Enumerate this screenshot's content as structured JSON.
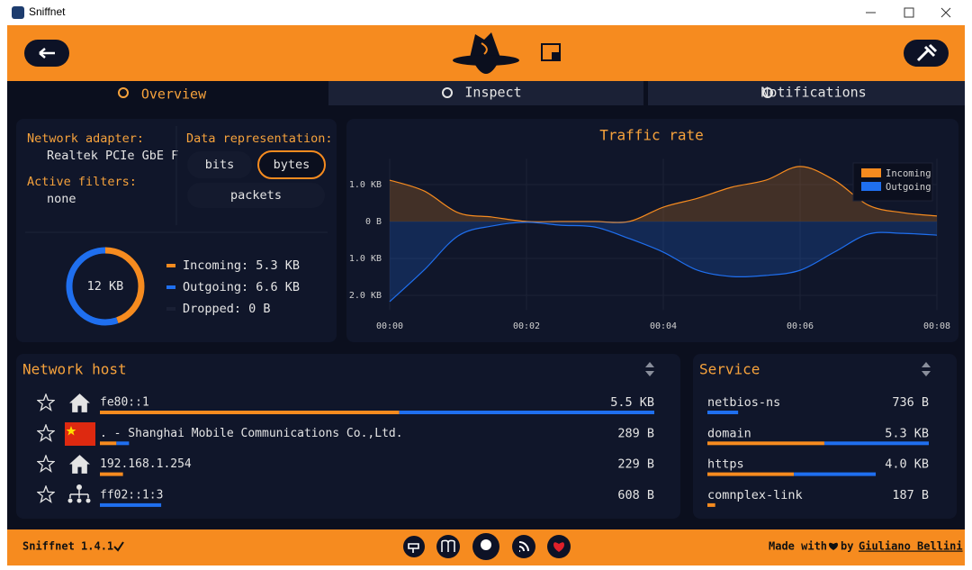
{
  "window_title": "Sniffnet",
  "tabs": [
    "Overview",
    "Inspect",
    "Notifications"
  ],
  "active_tab": 0,
  "overview": {
    "network_adapter_label": "Network adapter:",
    "network_adapter": "Realtek PCIe GbE F",
    "active_filters_label": "Active filters:",
    "active_filters": "none",
    "data_representation_label": "Data representation:",
    "data_representation_options": [
      "bits",
      "bytes",
      "packets"
    ],
    "data_representation_selected": 1
  },
  "chart_data": [
    {
      "type": "donut",
      "center_label": "12 KB",
      "categories": [
        "Incoming: 5.3 KB",
        "Outgoing: 6.6 KB",
        "Dropped: 0 B"
      ],
      "values": [
        5.3,
        6.6,
        0
      ],
      "colors": [
        "#f68b1f",
        "#1f6fef",
        "#1a2035"
      ]
    },
    {
      "type": "area",
      "title": "Traffic rate",
      "x": [
        0,
        0.5,
        1,
        1.5,
        2,
        2.5,
        3,
        3.5,
        4,
        4.5,
        5,
        5.5,
        6,
        6.5,
        7,
        7.5,
        8
      ],
      "xlim": [
        0,
        8
      ],
      "xticks": [
        {
          "value": 0,
          "label": "00:00"
        },
        {
          "value": 2,
          "label": "00:02"
        },
        {
          "value": 4,
          "label": "00:04"
        },
        {
          "value": 6,
          "label": "00:06"
        },
        {
          "value": 8,
          "label": "00:08"
        }
      ],
      "ylim": [
        -2.4,
        1.7
      ],
      "yticks": [
        {
          "value": 1,
          "label": "1.0 KB"
        },
        {
          "value": 0,
          "label": "0 B"
        },
        {
          "value": -1,
          "label": "1.0 KB"
        },
        {
          "value": -2,
          "label": "2.0 KB"
        }
      ],
      "series": [
        {
          "name": "Incoming",
          "color": "#f68b1f",
          "values": [
            1.12,
            0.83,
            0.24,
            0.12,
            0.0,
            0.0,
            0.0,
            0.0,
            0.39,
            0.63,
            0.93,
            1.12,
            1.49,
            1.12,
            0.44,
            0.24,
            0.15
          ]
        },
        {
          "name": "Outgoing",
          "color": "#1f6fef",
          "values": [
            -2.17,
            -1.32,
            -0.39,
            -0.12,
            -0.02,
            -0.1,
            -0.15,
            -0.46,
            -0.83,
            -1.32,
            -1.49,
            -1.46,
            -1.32,
            -0.83,
            -0.34,
            -0.32,
            -0.37
          ]
        }
      ],
      "grid": true,
      "legend": "upper right"
    }
  ],
  "network_host": {
    "title": "Network host",
    "rows": [
      {
        "name": "fe80::1",
        "traffic": "5.5 KB",
        "incoming": 2970,
        "outgoing": 2530
      },
      {
        "name": ". - Shanghai Mobile Communications Co.,Ltd.",
        "traffic": "289 B",
        "incoming": 164,
        "outgoing": 125
      },
      {
        "name": "192.168.1.254",
        "traffic": "229 B",
        "incoming": 229,
        "outgoing": 0
      },
      {
        "name": "ff02::1:3",
        "traffic": "608 B",
        "incoming": 0,
        "outgoing": 608
      }
    ]
  },
  "service": {
    "title": "Service",
    "rows": [
      {
        "name": "netbios-ns",
        "traffic": "736 B",
        "incoming": 0,
        "outgoing": 736
      },
      {
        "name": "domain",
        "traffic": "5.3 KB",
        "incoming": 2800,
        "outgoing": 2500
      },
      {
        "name": "https",
        "traffic": "4.0 KB",
        "incoming": 2070,
        "outgoing": 1960
      },
      {
        "name": "comnplex-link",
        "traffic": "187 B",
        "incoming": 187,
        "outgoing": 0
      }
    ]
  },
  "footer": {
    "version": "Sniffnet 1.4.1",
    "made_with": "Made with",
    "by": "by",
    "author": "Giuliano Bellini"
  }
}
